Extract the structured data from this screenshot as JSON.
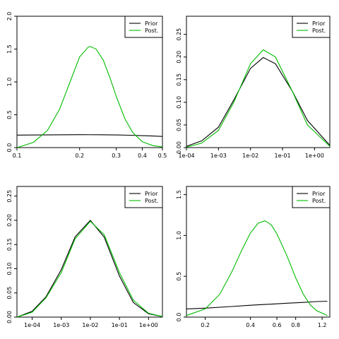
{
  "colors": {
    "prior": "#000000",
    "post": "#00bb00"
  },
  "chart_data": [
    {
      "type": "line",
      "xscale": "log",
      "xlim": [
        0.1,
        0.5
      ],
      "ylim": [
        0,
        2.0
      ],
      "xticks": [
        0.1,
        0.2,
        0.3,
        0.4,
        0.5
      ],
      "xtick_labels": [
        "0.1",
        "0.2",
        "0.3",
        "0.4",
        "0.5"
      ],
      "yticks": [
        0,
        0.5,
        1.0,
        1.5,
        2.0
      ],
      "ytick_labels": [
        "0.0",
        "0.5",
        "1.0",
        "1.5",
        "2.0"
      ],
      "xlabel": "",
      "ylabel": "",
      "legend": {
        "placement": "top-right",
        "entries": [
          "Prior",
          "Post."
        ]
      },
      "series": [
        {
          "name": "Prior",
          "color": "#000000",
          "x": [
            0.1,
            0.15,
            0.2,
            0.25,
            0.3,
            0.35,
            0.4,
            0.45,
            0.5
          ],
          "y": [
            0.19,
            0.195,
            0.197,
            0.196,
            0.193,
            0.188,
            0.182,
            0.176,
            0.17
          ]
        },
        {
          "name": "Post.",
          "color": "#00bb00",
          "x": [
            0.1,
            0.12,
            0.14,
            0.16,
            0.18,
            0.2,
            0.22,
            0.225,
            0.24,
            0.26,
            0.28,
            0.3,
            0.33,
            0.36,
            0.4,
            0.45,
            0.5
          ],
          "y": [
            0.0,
            0.08,
            0.26,
            0.58,
            1.0,
            1.38,
            1.53,
            1.54,
            1.5,
            1.33,
            1.06,
            0.78,
            0.44,
            0.23,
            0.09,
            0.03,
            0.01
          ]
        }
      ]
    },
    {
      "type": "line",
      "xscale": "log",
      "xlim": [
        0.0001,
        3.0
      ],
      "ylim": [
        0,
        0.29
      ],
      "xticks": [
        0.0001,
        0.001,
        0.01,
        0.1,
        1
      ],
      "xtick_labels": [
        "1e-04",
        "1e-03",
        "1e-02",
        "1e-01",
        "1e+00"
      ],
      "yticks": [
        0,
        0.05,
        0.1,
        0.15,
        0.2,
        0.25
      ],
      "ytick_labels": [
        "0.00",
        "0.05",
        "0.10",
        "0.15",
        "0.20",
        "0.25"
      ],
      "xlabel": "",
      "ylabel": "",
      "legend": {
        "placement": "top-right",
        "entries": [
          "Prior",
          "Post."
        ]
      },
      "series": [
        {
          "name": "Prior",
          "color": "#000000",
          "x": [
            0.0001,
            0.0003,
            0.001,
            0.003,
            0.01,
            0.025,
            0.06,
            0.2,
            0.6,
            3.0
          ],
          "y": [
            0.003,
            0.015,
            0.045,
            0.105,
            0.175,
            0.199,
            0.185,
            0.125,
            0.06,
            0.005
          ]
        },
        {
          "name": "Post.",
          "color": "#00bb00",
          "x": [
            0.0001,
            0.0003,
            0.001,
            0.003,
            0.01,
            0.025,
            0.06,
            0.2,
            0.6,
            3.0
          ],
          "y": [
            0.001,
            0.01,
            0.038,
            0.1,
            0.185,
            0.216,
            0.2,
            0.125,
            0.05,
            0.003
          ]
        }
      ]
    },
    {
      "type": "line",
      "xscale": "log",
      "xlim": [
        3e-05,
        3.0
      ],
      "ylim": [
        0,
        0.27
      ],
      "xticks": [
        0.0001,
        0.001,
        0.01,
        0.1,
        1
      ],
      "xtick_labels": [
        "1e-04",
        "1e-03",
        "1e-02",
        "1e-01",
        "1e+00"
      ],
      "yticks": [
        0,
        0.05,
        0.1,
        0.15,
        0.2,
        0.25
      ],
      "ytick_labels": [
        "0.00",
        "0.05",
        "0.10",
        "0.15",
        "0.20",
        "0.25"
      ],
      "xlabel": "",
      "ylabel": "",
      "legend": {
        "placement": "top-right",
        "entries": [
          "Prior",
          "Post."
        ]
      },
      "series": [
        {
          "name": "Prior",
          "color": "#000000",
          "x": [
            3e-05,
            0.0001,
            0.0003,
            0.001,
            0.003,
            0.01,
            0.03,
            0.1,
            0.3,
            1.0,
            3.0
          ],
          "y": [
            0.0,
            0.012,
            0.042,
            0.098,
            0.166,
            0.2,
            0.165,
            0.085,
            0.03,
            0.007,
            0.001
          ]
        },
        {
          "name": "Post.",
          "color": "#00bb00",
          "x": [
            3e-05,
            0.0001,
            0.0003,
            0.001,
            0.003,
            0.01,
            0.03,
            0.1,
            0.3,
            1.0,
            3.0
          ],
          "y": [
            0.0,
            0.01,
            0.04,
            0.092,
            0.162,
            0.198,
            0.17,
            0.092,
            0.035,
            0.008,
            0.001
          ]
        }
      ]
    },
    {
      "type": "line",
      "xscale": "log",
      "xlim": [
        0.15,
        1.35
      ],
      "ylim": [
        0,
        1.6
      ],
      "xticks": [
        0.2,
        0.4,
        0.6,
        0.8,
        1.2
      ],
      "xtick_labels": [
        "0.2",
        "0.4",
        "0.6",
        "0.8",
        "1.2"
      ],
      "yticks": [
        0,
        0.5,
        1.0,
        1.5
      ],
      "ytick_labels": [
        "0.0",
        "0.5",
        "1.0",
        "1.5"
      ],
      "xlabel": "",
      "ylabel": "",
      "legend": {
        "placement": "top-right",
        "entries": [
          "Prior",
          "Post."
        ]
      },
      "series": [
        {
          "name": "Prior",
          "color": "#000000",
          "x": [
            0.15,
            0.2,
            0.3,
            0.4,
            0.5,
            0.7,
            0.9,
            1.1,
            1.3
          ],
          "y": [
            0.1,
            0.11,
            0.13,
            0.145,
            0.155,
            0.17,
            0.18,
            0.19,
            0.195
          ]
        },
        {
          "name": "Post.",
          "color": "#00bb00",
          "x": [
            0.15,
            0.2,
            0.25,
            0.3,
            0.35,
            0.4,
            0.45,
            0.5,
            0.55,
            0.6,
            0.7,
            0.8,
            0.9,
            1.0,
            1.1,
            1.3
          ],
          "y": [
            0.02,
            0.1,
            0.28,
            0.55,
            0.82,
            1.03,
            1.15,
            1.18,
            1.13,
            1.02,
            0.75,
            0.48,
            0.28,
            0.15,
            0.08,
            0.02
          ]
        }
      ]
    }
  ]
}
